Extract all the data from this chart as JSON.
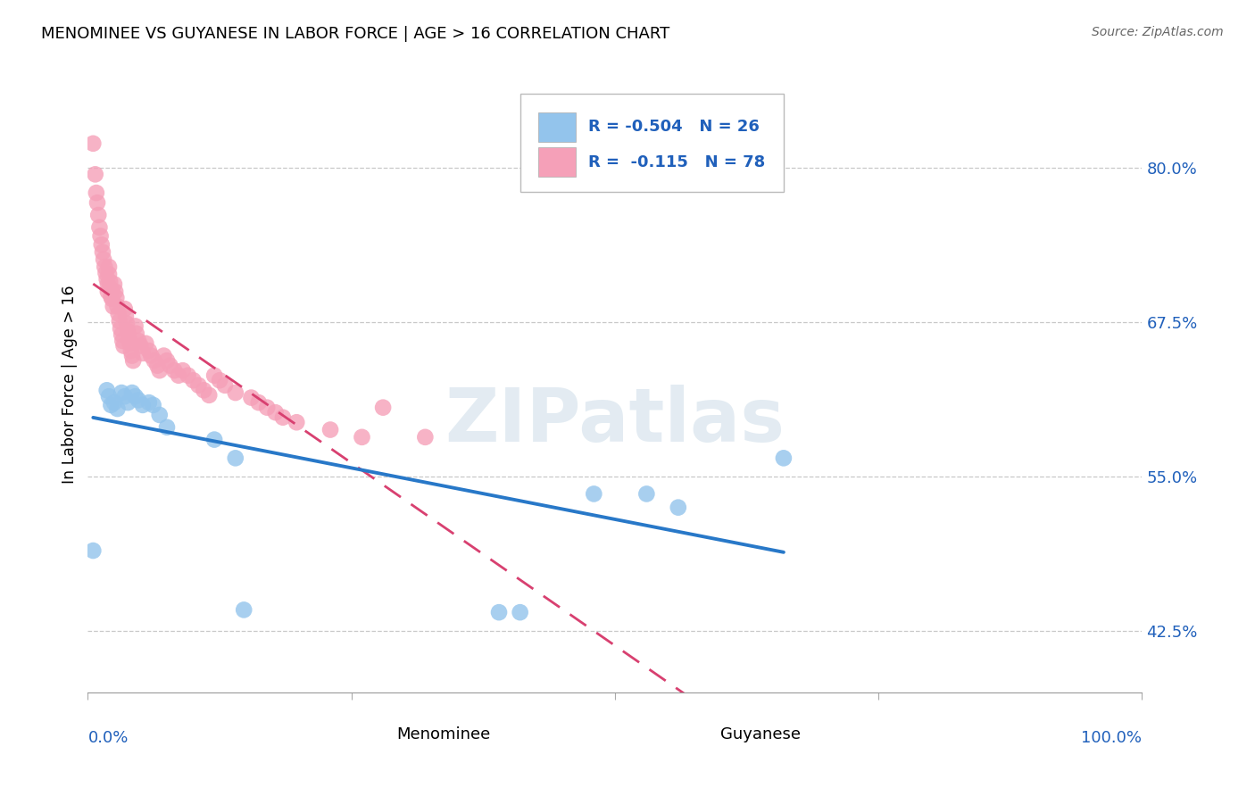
{
  "title": "MENOMINEE VS GUYANESE IN LABOR FORCE | AGE > 16 CORRELATION CHART",
  "source": "Source: ZipAtlas.com",
  "ylabel": "In Labor Force | Age > 16",
  "xlim": [
    0.0,
    1.0
  ],
  "ylim": [
    0.375,
    0.875
  ],
  "y_ticks": [
    0.425,
    0.55,
    0.675,
    0.8
  ],
  "y_tick_labels": [
    "42.5%",
    "55.0%",
    "67.5%",
    "80.0%"
  ],
  "x_tick_left": "0.0%",
  "x_tick_right": "100.0%",
  "r_menominee": -0.504,
  "n_menominee": 26,
  "r_guyanese": -0.115,
  "n_guyanese": 78,
  "menominee_color": "#93c4ec",
  "guyanese_color": "#f5a0b8",
  "menominee_line_color": "#2878c8",
  "guyanese_line_color": "#d84070",
  "watermark": "ZIPatlas",
  "menominee_x": [
    0.005,
    0.018,
    0.02,
    0.022,
    0.025,
    0.028,
    0.032,
    0.035,
    0.038,
    0.042,
    0.045,
    0.048,
    0.052,
    0.058,
    0.062,
    0.068,
    0.075,
    0.12,
    0.14,
    0.148,
    0.39,
    0.41,
    0.48,
    0.53,
    0.56,
    0.66
  ],
  "menominee_y": [
    0.49,
    0.62,
    0.615,
    0.608,
    0.61,
    0.605,
    0.618,
    0.615,
    0.61,
    0.618,
    0.615,
    0.612,
    0.608,
    0.61,
    0.608,
    0.6,
    0.59,
    0.58,
    0.565,
    0.442,
    0.44,
    0.44,
    0.536,
    0.536,
    0.525,
    0.565
  ],
  "guyanese_x": [
    0.005,
    0.007,
    0.008,
    0.009,
    0.01,
    0.011,
    0.012,
    0.013,
    0.014,
    0.015,
    0.016,
    0.017,
    0.018,
    0.019,
    0.019,
    0.02,
    0.02,
    0.021,
    0.022,
    0.022,
    0.023,
    0.023,
    0.024,
    0.025,
    0.026,
    0.027,
    0.028,
    0.029,
    0.03,
    0.031,
    0.032,
    0.033,
    0.034,
    0.035,
    0.036,
    0.037,
    0.038,
    0.039,
    0.04,
    0.041,
    0.042,
    0.043,
    0.045,
    0.046,
    0.048,
    0.05,
    0.052,
    0.055,
    0.058,
    0.06,
    0.063,
    0.066,
    0.068,
    0.072,
    0.075,
    0.078,
    0.082,
    0.086,
    0.09,
    0.095,
    0.1,
    0.105,
    0.11,
    0.115,
    0.12,
    0.125,
    0.13,
    0.14,
    0.155,
    0.162,
    0.17,
    0.178,
    0.185,
    0.198,
    0.23,
    0.26,
    0.28,
    0.32
  ],
  "guyanese_y": [
    0.82,
    0.795,
    0.78,
    0.772,
    0.762,
    0.752,
    0.745,
    0.738,
    0.732,
    0.726,
    0.72,
    0.715,
    0.71,
    0.706,
    0.7,
    0.72,
    0.714,
    0.708,
    0.702,
    0.696,
    0.7,
    0.694,
    0.688,
    0.706,
    0.7,
    0.695,
    0.688,
    0.682,
    0.676,
    0.67,
    0.665,
    0.66,
    0.656,
    0.686,
    0.68,
    0.674,
    0.668,
    0.662,
    0.658,
    0.652,
    0.648,
    0.644,
    0.672,
    0.666,
    0.66,
    0.656,
    0.65,
    0.658,
    0.652,
    0.648,
    0.644,
    0.64,
    0.636,
    0.648,
    0.644,
    0.64,
    0.636,
    0.632,
    0.636,
    0.632,
    0.628,
    0.624,
    0.62,
    0.616,
    0.632,
    0.628,
    0.624,
    0.618,
    0.614,
    0.61,
    0.606,
    0.602,
    0.598,
    0.594,
    0.588,
    0.582,
    0.606,
    0.582
  ]
}
